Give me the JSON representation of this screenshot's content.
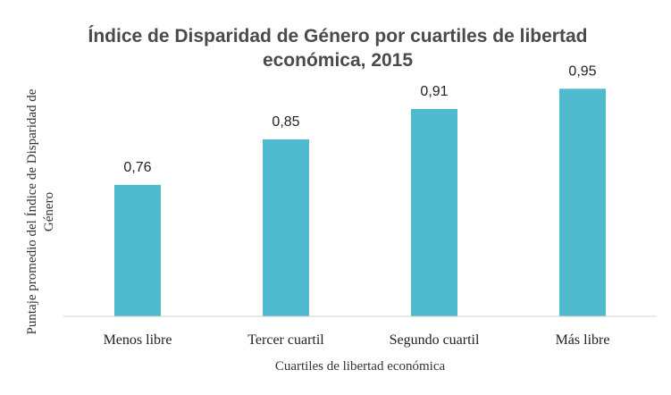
{
  "chart_data": {
    "type": "bar",
    "title": {
      "line1": "Índice de Disparidad de Género por cuartiles de libertad",
      "line2": "económica, 2015"
    },
    "categories": [
      "Menos libre",
      "Tercer cuartil",
      "Segundo cuartil",
      "Más libre"
    ],
    "values": [
      0.76,
      0.85,
      0.91,
      0.95
    ],
    "value_labels": [
      "0,76",
      "0,85",
      "0,91",
      "0,95"
    ],
    "xlabel": "Cuartiles de libertad económica",
    "ylabel": {
      "line1": "Puntaje promedio del Índice de Disparidad de",
      "line2": "Género"
    },
    "ylim": [
      0.5,
      1.0
    ],
    "grid": false,
    "legend": "none",
    "bar_color": "#4fbacd",
    "axis_color": "#d0d0d0"
  }
}
